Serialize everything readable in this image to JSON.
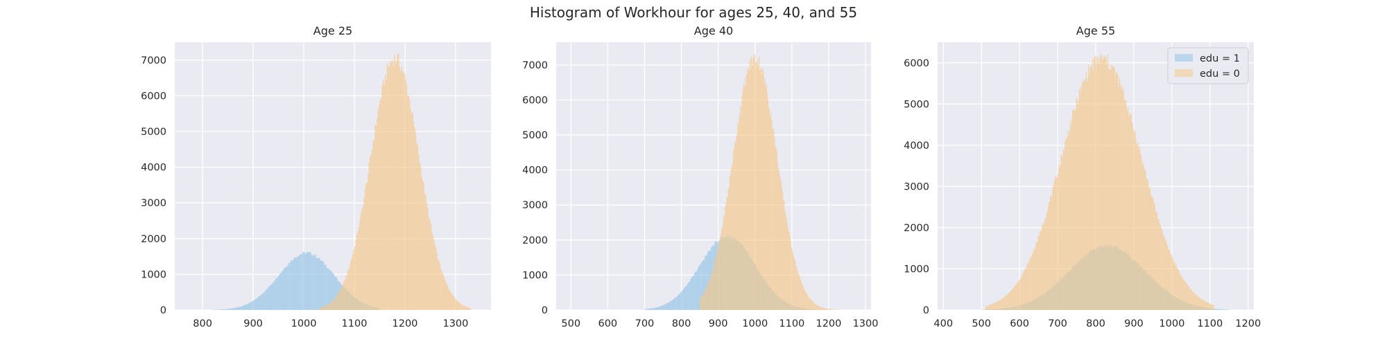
{
  "figure": {
    "title": "Histogram of Workhour for ages 25, 40, and 55"
  },
  "colors": {
    "background": "#eaeaf2",
    "grid": "#ffffff",
    "edu1": "#93c4e6",
    "edu0": "#f5c88a",
    "overlap": "#c9c595",
    "text": "#262626"
  },
  "chart_data": [
    {
      "type": "histogram",
      "title": "Age 25",
      "xlim": [
        745,
        1370
      ],
      "ylim": [
        0,
        7500
      ],
      "xticks": [
        800,
        900,
        1000,
        1100,
        1200,
        1300
      ],
      "yticks": [
        0,
        1000,
        2000,
        3000,
        4000,
        5000,
        6000,
        7000
      ],
      "grid": true,
      "series": [
        {
          "name": "edu = 1",
          "color": "#93c4e6",
          "mean": 1005,
          "sd": 55,
          "peak": 1600,
          "range": [
            820,
            1150
          ]
        },
        {
          "name": "edu = 0",
          "color": "#f5c88a",
          "mean": 1180,
          "sd": 48,
          "peak": 7050,
          "range": [
            1030,
            1330
          ]
        }
      ]
    },
    {
      "type": "histogram",
      "title": "Age 40",
      "xlim": [
        460,
        1315
      ],
      "ylim": [
        0,
        7650
      ],
      "xticks": [
        500,
        600,
        700,
        800,
        900,
        1000,
        1100,
        1200,
        1300
      ],
      "yticks": [
        0,
        1000,
        2000,
        3000,
        4000,
        5000,
        6000,
        7000
      ],
      "grid": true,
      "series": [
        {
          "name": "edu = 1",
          "color": "#93c4e6",
          "mean": 925,
          "sd": 75,
          "peak": 2100,
          "range": [
            700,
            1200
          ]
        },
        {
          "name": "edu = 0",
          "color": "#f5c88a",
          "mean": 1000,
          "sd": 60,
          "peak": 7200,
          "range": [
            850,
            1230
          ]
        }
      ]
    },
    {
      "type": "histogram",
      "title": "Age 55",
      "xlim": [
        385,
        1215
      ],
      "ylim": [
        0,
        6500
      ],
      "xticks": [
        400,
        500,
        600,
        700,
        800,
        900,
        1000,
        1100,
        1200
      ],
      "yticks": [
        0,
        1000,
        2000,
        3000,
        4000,
        5000,
        6000
      ],
      "grid": true,
      "legend": {
        "placement": "upper right",
        "entries": [
          "edu = 1",
          "edu = 0"
        ]
      },
      "series": [
        {
          "name": "edu = 1",
          "color": "#93c4e6",
          "mean": 830,
          "sd": 100,
          "peak": 1560,
          "range": [
            500,
            1150
          ]
        },
        {
          "name": "edu = 0",
          "color": "#f5c88a",
          "mean": 815,
          "sd": 105,
          "peak": 6100,
          "range": [
            510,
            1110
          ]
        }
      ]
    }
  ]
}
